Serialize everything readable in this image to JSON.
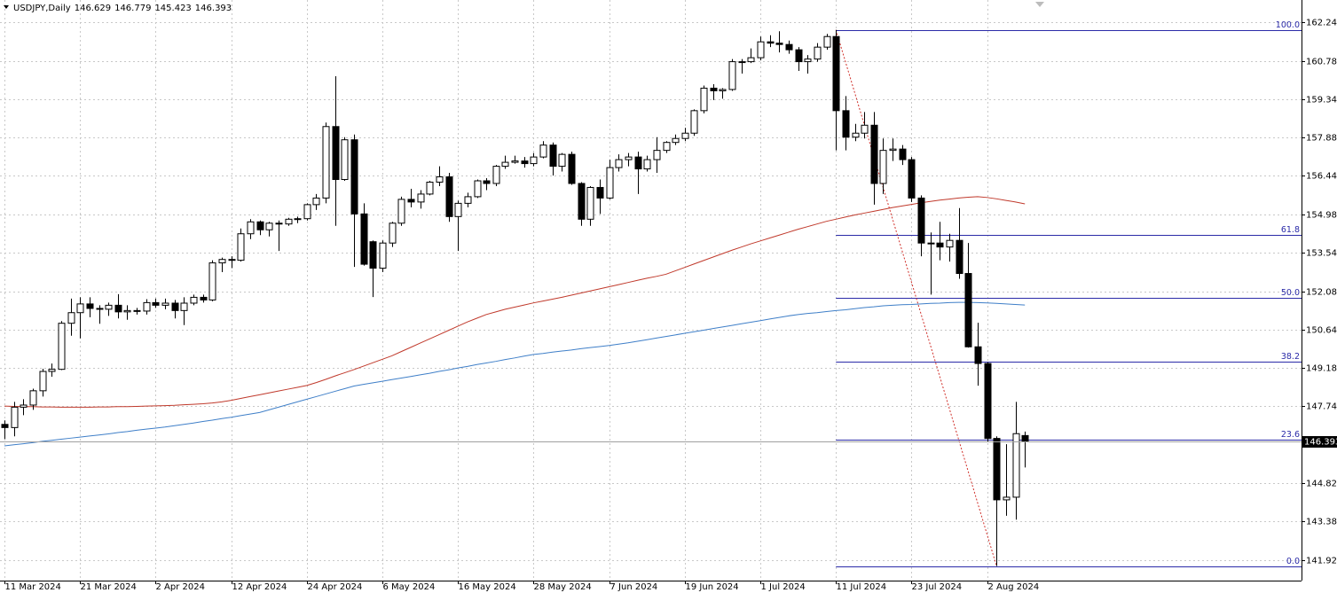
{
  "chart_data": {
    "type": "candlestick",
    "title": "USDJPY,Daily",
    "categories": [
      "11 Mar 2024",
      null,
      null,
      null,
      null,
      null,
      null,
      null,
      "21 Mar 2024",
      null,
      null,
      null,
      null,
      null,
      null,
      null,
      "2 Apr 2024",
      null,
      null,
      null,
      null,
      null,
      null,
      null,
      "12 Apr 2024",
      null,
      null,
      null,
      null,
      null,
      null,
      null,
      "24 Apr 2024",
      null,
      null,
      null,
      null,
      null,
      null,
      null,
      "6 May 2024",
      null,
      null,
      null,
      null,
      null,
      null,
      null,
      "16 May 2024",
      null,
      null,
      null,
      null,
      null,
      null,
      null,
      "28 May 2024",
      null,
      null,
      null,
      null,
      null,
      null,
      null,
      "7 Jun 2024",
      null,
      null,
      null,
      null,
      null,
      null,
      null,
      "19 Jun 2024",
      null,
      null,
      null,
      null,
      null,
      null,
      null,
      "1 Jul 2024",
      null,
      null,
      null,
      null,
      null,
      null,
      null,
      "11 Jul 2024",
      null,
      null,
      null,
      null,
      null,
      null,
      null,
      "23 Jul 2024",
      null,
      null,
      null,
      null,
      null,
      null,
      null,
      "2 Aug 2024",
      null,
      null,
      null,
      null
    ],
    "open": [
      147.05,
      146.93,
      147.7,
      147.78,
      148.32,
      149.05,
      149.13,
      150.87,
      151.27,
      151.6,
      151.43,
      151.4,
      151.55,
      151.3,
      151.35,
      151.33,
      151.65,
      151.55,
      151.63,
      151.35,
      151.63,
      151.85,
      151.75,
      153.15,
      153.28,
      153.25,
      154.25,
      154.7,
      154.4,
      154.65,
      154.62,
      154.8,
      154.82,
      155.35,
      155.6,
      158.3,
      156.3,
      157.8,
      155.0,
      153.95,
      152.95,
      153.9,
      154.65,
      155.55,
      155.45,
      155.75,
      156.2,
      156.4,
      154.9,
      155.4,
      155.65,
      156.25,
      156.15,
      156.8,
      156.95,
      157.0,
      156.9,
      157.15,
      157.6,
      156.8,
      157.25,
      156.15,
      154.8,
      156.0,
      155.6,
      156.75,
      157.05,
      157.15,
      156.7,
      157.05,
      157.4,
      157.7,
      157.85,
      158.05,
      158.9,
      159.75,
      159.65,
      159.7,
      160.75,
      160.75,
      160.9,
      161.5,
      161.45,
      161.4,
      161.2,
      160.75,
      160.85,
      161.3,
      161.7,
      158.9,
      157.9,
      158.05,
      158.35,
      156.15,
      157.4,
      157.45,
      157.05,
      155.6,
      153.9,
      153.9,
      153.75,
      154.0,
      152.75,
      149.98,
      149.35,
      146.52,
      144.2,
      144.3,
      146.629
    ],
    "high": [
      147.2,
      147.9,
      148.0,
      148.4,
      149.15,
      149.35,
      150.95,
      151.8,
      151.85,
      151.85,
      151.55,
      151.65,
      151.97,
      151.55,
      151.45,
      151.78,
      151.8,
      151.8,
      151.75,
      151.85,
      151.95,
      151.95,
      153.25,
      153.35,
      153.4,
      154.45,
      154.8,
      154.75,
      154.7,
      154.75,
      154.85,
      154.9,
      155.4,
      155.75,
      158.45,
      160.2,
      157.9,
      158.0,
      155.4,
      154.0,
      154.0,
      154.7,
      155.65,
      155.95,
      155.9,
      156.25,
      156.8,
      156.55,
      155.5,
      155.8,
      156.3,
      156.35,
      156.85,
      157.2,
      157.2,
      157.15,
      157.3,
      157.75,
      157.7,
      157.3,
      157.35,
      156.2,
      156.05,
      156.3,
      157.05,
      157.25,
      157.3,
      157.35,
      157.2,
      157.9,
      157.75,
      158.0,
      158.25,
      158.95,
      159.85,
      159.9,
      159.75,
      160.85,
      160.85,
      161.25,
      161.7,
      161.75,
      161.9,
      161.55,
      161.3,
      161.0,
      161.45,
      161.8,
      161.95,
      159.45,
      158.4,
      158.85,
      158.85,
      157.85,
      157.85,
      157.6,
      157.15,
      155.7,
      154.3,
      154.7,
      154.25,
      155.22,
      153.9,
      150.89,
      149.4,
      146.6,
      146.3,
      147.9,
      146.779
    ],
    "low": [
      146.5,
      146.6,
      147.4,
      147.6,
      148.1,
      148.85,
      149.1,
      150.4,
      150.3,
      151.1,
      150.85,
      151.15,
      151.05,
      151.0,
      151.2,
      151.2,
      151.45,
      151.4,
      151.05,
      150.8,
      151.55,
      151.65,
      151.7,
      152.8,
      152.95,
      153.2,
      154.05,
      154.2,
      154.15,
      153.6,
      154.55,
      154.65,
      154.75,
      155.15,
      155.4,
      154.55,
      156.25,
      153.0,
      153.05,
      151.86,
      152.8,
      153.75,
      154.55,
      155.25,
      155.2,
      155.7,
      156.05,
      154.7,
      153.6,
      155.25,
      155.6,
      155.9,
      156.05,
      156.7,
      156.9,
      156.75,
      156.8,
      157.1,
      156.45,
      156.6,
      156.1,
      154.55,
      154.55,
      155.0,
      155.55,
      156.6,
      156.8,
      155.75,
      156.6,
      156.55,
      157.3,
      157.6,
      157.75,
      157.95,
      158.8,
      159.3,
      159.35,
      159.65,
      160.3,
      160.7,
      160.8,
      161.3,
      161.1,
      161.05,
      160.4,
      160.3,
      160.75,
      161.2,
      157.4,
      157.4,
      157.75,
      157.85,
      155.35,
      155.75,
      157.0,
      156.85,
      155.45,
      153.4,
      151.95,
      153.25,
      153.2,
      152.55,
      149.95,
      148.51,
      146.4,
      141.7,
      143.6,
      143.45,
      145.423
    ],
    "close": [
      146.93,
      147.7,
      147.78,
      148.32,
      149.05,
      149.13,
      150.87,
      151.27,
      151.6,
      151.43,
      151.4,
      151.55,
      151.3,
      151.35,
      151.33,
      151.65,
      151.55,
      151.63,
      151.35,
      151.63,
      151.85,
      151.75,
      153.15,
      153.28,
      153.25,
      154.25,
      154.7,
      154.4,
      154.65,
      154.62,
      154.8,
      154.82,
      155.35,
      155.6,
      158.3,
      156.3,
      157.8,
      155.0,
      153.1,
      152.95,
      153.9,
      154.65,
      155.55,
      155.45,
      155.75,
      156.2,
      156.4,
      154.9,
      155.4,
      155.65,
      156.25,
      156.15,
      156.8,
      156.95,
      157.0,
      156.9,
      157.15,
      157.6,
      156.8,
      157.25,
      156.15,
      154.8,
      156.0,
      155.6,
      156.75,
      157.05,
      157.15,
      156.7,
      157.05,
      157.4,
      157.7,
      157.85,
      158.05,
      158.9,
      159.75,
      159.65,
      159.7,
      160.75,
      160.75,
      160.9,
      161.5,
      161.45,
      161.4,
      161.2,
      160.75,
      160.85,
      161.3,
      161.7,
      158.9,
      157.9,
      158.05,
      158.35,
      156.15,
      157.4,
      157.45,
      157.05,
      155.6,
      153.9,
      153.9,
      153.75,
      154.0,
      152.75,
      149.98,
      149.35,
      146.52,
      144.2,
      144.3,
      146.7,
      146.393
    ],
    "up_color": "#ffffff",
    "down_color": "#000000",
    "lines": [
      {
        "color": "#c0392b",
        "values": [
          147.74,
          147.73,
          147.72,
          147.72,
          147.71,
          147.71,
          147.7,
          147.7,
          147.7,
          147.7,
          147.71,
          147.71,
          147.72,
          147.72,
          147.73,
          147.74,
          147.75,
          147.76,
          147.77,
          147.79,
          147.81,
          147.83,
          147.86,
          147.9,
          147.96,
          148.03,
          148.1,
          148.17,
          148.24,
          148.31,
          148.38,
          148.45,
          148.52,
          148.63,
          148.75,
          148.88,
          149.0,
          149.12,
          149.25,
          149.38,
          149.51,
          149.64,
          149.8,
          149.96,
          150.12,
          150.28,
          150.44,
          150.6,
          150.76,
          150.92,
          151.06,
          151.2,
          151.3,
          151.4,
          151.48,
          151.56,
          151.64,
          151.71,
          151.78,
          151.85,
          151.93,
          152.01,
          152.09,
          152.17,
          152.25,
          152.33,
          152.41,
          152.49,
          152.57,
          152.64,
          152.72,
          152.85,
          152.98,
          153.11,
          153.24,
          153.37,
          153.5,
          153.63,
          153.75,
          153.87,
          153.98,
          154.09,
          154.2,
          154.31,
          154.42,
          154.52,
          154.62,
          154.72,
          154.8,
          154.88,
          154.96,
          155.03,
          155.1,
          155.17,
          155.24,
          155.3,
          155.36,
          155.42,
          155.47,
          155.52,
          155.56,
          155.6,
          155.63,
          155.65,
          155.62,
          155.57,
          155.51,
          155.45,
          155.38
        ]
      },
      {
        "color": "#3f7fc8",
        "values": [
          146.24,
          146.28,
          146.32,
          146.36,
          146.41,
          146.45,
          146.49,
          146.53,
          146.57,
          146.61,
          146.65,
          146.69,
          146.74,
          146.78,
          146.83,
          146.87,
          146.91,
          146.95,
          147.0,
          147.05,
          147.1,
          147.16,
          147.21,
          147.27,
          147.32,
          147.38,
          147.44,
          147.5,
          147.6,
          147.7,
          147.8,
          147.9,
          148.0,
          148.1,
          148.2,
          148.3,
          148.4,
          148.5,
          148.56,
          148.62,
          148.68,
          148.74,
          148.8,
          148.86,
          148.92,
          148.98,
          149.05,
          149.11,
          149.18,
          149.24,
          149.31,
          149.37,
          149.43,
          149.5,
          149.56,
          149.63,
          149.69,
          149.73,
          149.78,
          149.82,
          149.86,
          149.91,
          149.95,
          149.99,
          150.03,
          150.08,
          150.13,
          150.19,
          150.25,
          150.31,
          150.37,
          150.43,
          150.49,
          150.55,
          150.61,
          150.67,
          150.73,
          150.79,
          150.85,
          150.91,
          150.97,
          151.03,
          151.09,
          151.15,
          151.2,
          151.24,
          151.27,
          151.31,
          151.35,
          151.38,
          151.42,
          151.46,
          151.49,
          151.53,
          151.55,
          151.57,
          151.58,
          151.6,
          151.62,
          151.63,
          151.65,
          151.66,
          151.66,
          151.65,
          151.64,
          151.62,
          151.6,
          151.58,
          151.56
        ]
      }
    ],
    "fibonacci": {
      "color": "#2b2ba8",
      "trend_color": "#d0302a",
      "levels": [
        {
          "value": 100,
          "label": "100.0"
        },
        61.8,
        {
          "value": 50,
          "label": "50.0"
        },
        38.2,
        23.6,
        {
          "value": 0,
          "label": "0.0"
        }
      ]
    },
    "ylim": [
      141.15,
      163.08
    ],
    "yticks": [
      {
        "value": 162.24,
        "label": "162.240"
      },
      {
        "value": 160.78,
        "label": "160.780"
      },
      {
        "value": 159.34,
        "label": "159.340"
      },
      {
        "value": 157.88,
        "label": "157.880"
      },
      {
        "value": 156.44,
        "label": "156.440"
      },
      {
        "value": 154.98,
        "label": "154.980"
      },
      {
        "value": 153.54,
        "label": "153.540"
      },
      {
        "value": 152.08,
        "label": "152.080"
      },
      {
        "value": 150.64,
        "label": "150.640"
      },
      {
        "value": 149.18,
        "label": "149.180"
      },
      {
        "value": 147.74,
        "label": "147.740"
      },
      {
        "value": 144.82,
        "label": "144.820"
      },
      {
        "value": 143.38,
        "label": "143.380"
      },
      {
        "value": 141.92,
        "label": "141.920"
      }
    ],
    "grid": true
  }
}
